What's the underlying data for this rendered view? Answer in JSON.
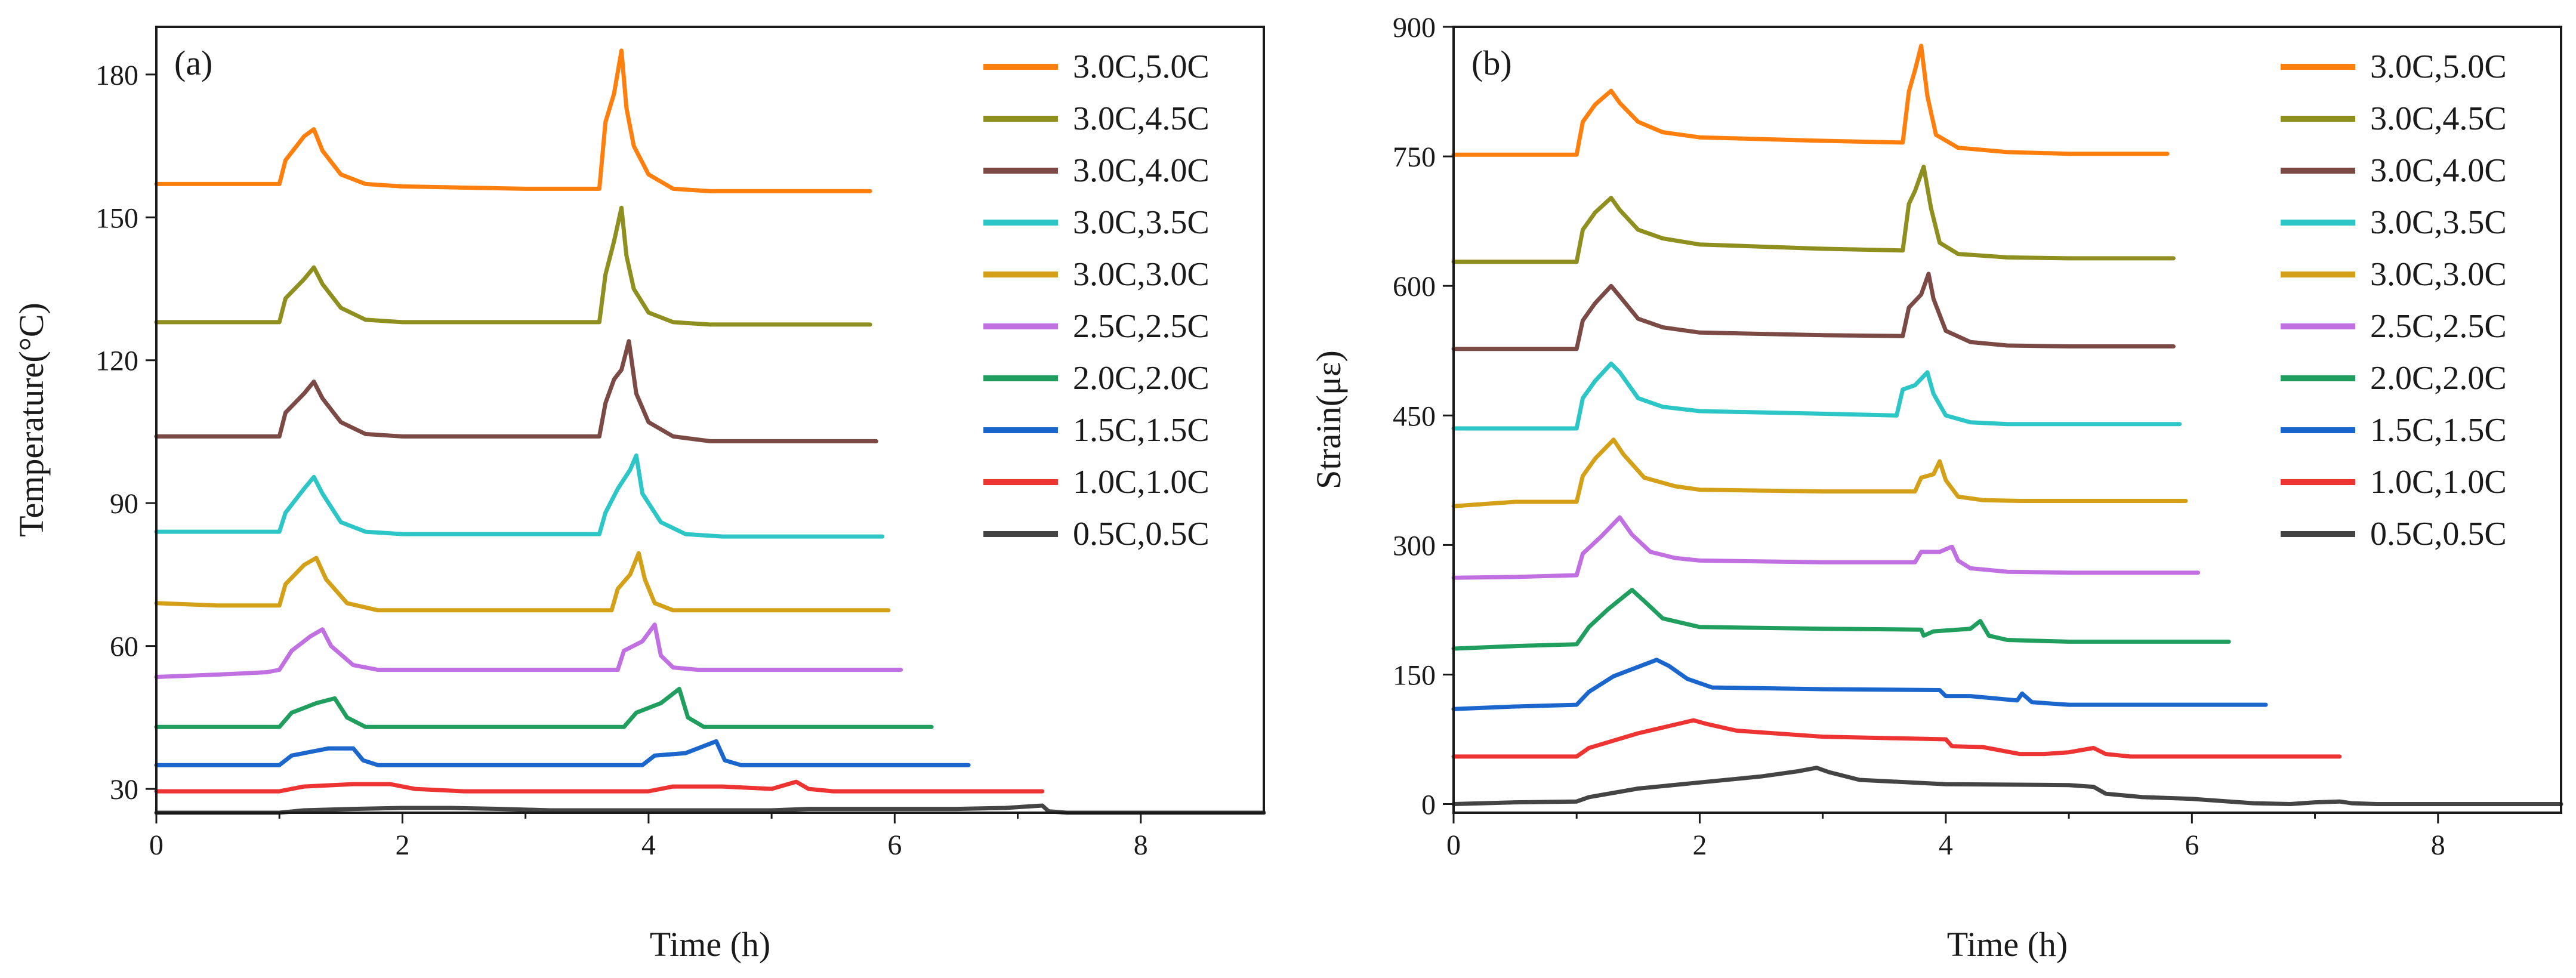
{
  "chart_data": [
    {
      "type": "line",
      "panel_label": "(a)",
      "title": "",
      "xlabel": "Time (h)",
      "ylabel": "Temperature(°C)",
      "xlim": [
        0,
        9
      ],
      "ylim": [
        25,
        190
      ],
      "xticks": [
        0,
        2,
        4,
        6,
        8
      ],
      "yticks": [
        30,
        60,
        90,
        120,
        150,
        180
      ],
      "legend_position": "top-right",
      "grid": false,
      "series": [
        {
          "name": "3.0C,5.0C",
          "color": "#ff7f0e",
          "x": [
            0,
            0.5,
            1.0,
            1.05,
            1.2,
            1.28,
            1.35,
            1.5,
            1.7,
            2.0,
            3.0,
            3.6,
            3.65,
            3.72,
            3.78,
            3.82,
            3.88,
            4.0,
            4.2,
            4.5,
            5.0,
            5.8
          ],
          "y": [
            157,
            157,
            157,
            162,
            167,
            168.5,
            164,
            159,
            157,
            156.5,
            156,
            156,
            170,
            176,
            185,
            173,
            165,
            159,
            156,
            155.5,
            155.5,
            155.5
          ]
        },
        {
          "name": "3.0C,4.5C",
          "color": "#8f8f1f",
          "x": [
            0,
            0.5,
            1.0,
            1.05,
            1.2,
            1.28,
            1.35,
            1.5,
            1.7,
            2.0,
            3.0,
            3.6,
            3.65,
            3.72,
            3.78,
            3.82,
            3.88,
            4.0,
            4.2,
            4.5,
            5.0,
            5.8
          ],
          "y": [
            128,
            128,
            128,
            133,
            137,
            139.5,
            136,
            131,
            128.5,
            128,
            128,
            128,
            138,
            145,
            152,
            142,
            135,
            130,
            128,
            127.5,
            127.5,
            127.5
          ]
        },
        {
          "name": "3.0C,4.0C",
          "color": "#7b4a45",
          "x": [
            0,
            0.5,
            1.0,
            1.05,
            1.2,
            1.28,
            1.35,
            1.5,
            1.7,
            2.0,
            3.0,
            3.6,
            3.65,
            3.72,
            3.78,
            3.84,
            3.9,
            4.0,
            4.2,
            4.5,
            5.0,
            5.85
          ],
          "y": [
            104,
            104,
            104,
            109,
            113,
            115.5,
            112,
            107,
            104.5,
            104,
            104,
            104,
            111,
            116,
            118,
            124,
            113,
            107,
            104,
            103,
            103,
            103
          ]
        },
        {
          "name": "3.0C,3.5C",
          "color": "#2cc6c6",
          "x": [
            0,
            0.5,
            1.0,
            1.05,
            1.2,
            1.28,
            1.35,
            1.5,
            1.7,
            2.0,
            3.0,
            3.6,
            3.65,
            3.75,
            3.85,
            3.9,
            3.95,
            4.1,
            4.3,
            4.6,
            5.0,
            5.9
          ],
          "y": [
            84,
            84,
            84,
            88,
            93,
            95.5,
            92,
            86,
            84,
            83.5,
            83.5,
            83.5,
            88,
            93,
            97,
            100,
            92,
            86,
            83.5,
            83,
            83,
            83
          ]
        },
        {
          "name": "3.0C,3.0C",
          "color": "#d4a017",
          "x": [
            0,
            0.5,
            1.0,
            1.05,
            1.2,
            1.3,
            1.38,
            1.55,
            1.8,
            2.0,
            3.0,
            3.7,
            3.75,
            3.85,
            3.92,
            3.97,
            4.05,
            4.2,
            4.5,
            5.0,
            5.95
          ],
          "y": [
            69,
            68.5,
            68.5,
            73,
            77,
            78.5,
            74,
            69,
            67.5,
            67.5,
            67.5,
            67.5,
            72,
            75,
            79.5,
            74,
            69,
            67.5,
            67.5,
            67.5,
            67.5
          ]
        },
        {
          "name": "2.5C,2.5C",
          "color": "#c070e0",
          "x": [
            0,
            0.5,
            0.9,
            1.0,
            1.1,
            1.25,
            1.35,
            1.42,
            1.6,
            1.8,
            2.0,
            3.0,
            3.75,
            3.8,
            3.95,
            4.05,
            4.1,
            4.2,
            4.4,
            5.0,
            6.05
          ],
          "y": [
            53.5,
            54,
            54.5,
            55,
            59,
            62,
            63.5,
            60,
            56,
            55,
            55,
            55,
            55,
            59,
            61,
            64.5,
            58,
            55.5,
            55,
            55,
            55
          ]
        },
        {
          "name": "2.0C,2.0C",
          "color": "#1f9e5e",
          "x": [
            0,
            0.5,
            1.0,
            1.1,
            1.3,
            1.45,
            1.55,
            1.7,
            2.0,
            3.0,
            3.8,
            3.9,
            4.1,
            4.25,
            4.32,
            4.45,
            4.6,
            5.0,
            6.3
          ],
          "y": [
            43,
            43,
            43,
            46,
            48,
            49,
            45,
            43,
            43,
            43,
            43,
            46,
            48,
            51,
            45,
            43,
            43,
            43,
            43
          ]
        },
        {
          "name": "1.5C,1.5C",
          "color": "#1a66cc",
          "x": [
            0,
            0.5,
            1.0,
            1.1,
            1.4,
            1.6,
            1.68,
            1.8,
            2.0,
            3.0,
            3.95,
            4.05,
            4.3,
            4.55,
            4.62,
            4.75,
            5.0,
            6.6
          ],
          "y": [
            35,
            35,
            35,
            37,
            38.5,
            38.5,
            36,
            35,
            35,
            35,
            35,
            37,
            37.5,
            40,
            36,
            35,
            35,
            35
          ]
        },
        {
          "name": "1.0C,1.0C",
          "color": "#ee3333",
          "x": [
            0,
            0.5,
            1.0,
            1.2,
            1.6,
            1.9,
            2.1,
            2.5,
            3.0,
            4.0,
            4.2,
            4.6,
            5.0,
            5.2,
            5.3,
            5.5,
            6.0,
            7.2
          ],
          "y": [
            29.5,
            29.5,
            29.5,
            30.5,
            31,
            31,
            30,
            29.5,
            29.5,
            29.5,
            30.5,
            30.5,
            30,
            31.5,
            30,
            29.5,
            29.5,
            29.5
          ]
        },
        {
          "name": "0.5C,0.5C",
          "color": "#444444",
          "x": [
            0,
            0.5,
            1.0,
            1.2,
            1.6,
            2.0,
            2.4,
            2.8,
            3.2,
            4.0,
            5.0,
            5.3,
            6.0,
            6.5,
            6.9,
            7.2,
            7.25,
            7.4,
            8.0,
            9.0
          ],
          "y": [
            25,
            25,
            25,
            25.5,
            25.8,
            26,
            26,
            25.8,
            25.5,
            25.5,
            25.5,
            25.8,
            25.8,
            25.8,
            26,
            26.5,
            25.3,
            25,
            25,
            25
          ]
        }
      ]
    },
    {
      "type": "line",
      "panel_label": "(b)",
      "title": "",
      "xlabel": "Time (h)",
      "ylabel": "Strain(με)",
      "xlim": [
        0,
        9
      ],
      "ylim": [
        -10,
        900
      ],
      "xticks": [
        0,
        2,
        4,
        6,
        8
      ],
      "yticks": [
        0,
        150,
        300,
        450,
        600,
        750,
        900
      ],
      "legend_position": "top-right",
      "grid": false,
      "series": [
        {
          "name": "3.0C,5.0C",
          "color": "#ff7f0e",
          "x": [
            0,
            0.5,
            1.0,
            1.05,
            1.15,
            1.28,
            1.35,
            1.5,
            1.7,
            2.0,
            3.0,
            3.65,
            3.7,
            3.75,
            3.8,
            3.85,
            3.92,
            4.1,
            4.5,
            5.0,
            5.8
          ],
          "y": [
            752,
            752,
            752,
            790,
            810,
            826,
            812,
            790,
            778,
            772,
            768,
            766,
            825,
            850,
            878,
            820,
            775,
            760,
            755,
            753,
            753
          ]
        },
        {
          "name": "3.0C,4.5C",
          "color": "#8f8f1f",
          "x": [
            0,
            0.5,
            1.0,
            1.05,
            1.15,
            1.28,
            1.35,
            1.5,
            1.7,
            2.0,
            3.0,
            3.65,
            3.7,
            3.75,
            3.82,
            3.88,
            3.95,
            4.1,
            4.5,
            5.0,
            5.85
          ],
          "y": [
            628,
            628,
            628,
            665,
            685,
            702,
            688,
            665,
            655,
            648,
            643,
            641,
            695,
            710,
            738,
            690,
            650,
            637,
            633,
            632,
            632
          ]
        },
        {
          "name": "3.0C,4.0C",
          "color": "#7b4a45",
          "x": [
            0,
            0.5,
            1.0,
            1.05,
            1.15,
            1.28,
            1.35,
            1.5,
            1.7,
            2.0,
            3.0,
            3.65,
            3.7,
            3.8,
            3.86,
            3.9,
            4.0,
            4.2,
            4.5,
            5.0,
            5.85
          ],
          "y": [
            527,
            527,
            527,
            560,
            580,
            600,
            588,
            562,
            552,
            546,
            543,
            542,
            575,
            590,
            614,
            585,
            548,
            535,
            531,
            530,
            530
          ]
        },
        {
          "name": "3.0C,3.5C",
          "color": "#2cc6c6",
          "x": [
            0,
            0.5,
            1.0,
            1.05,
            1.15,
            1.28,
            1.35,
            1.5,
            1.7,
            2.0,
            3.0,
            3.6,
            3.65,
            3.75,
            3.85,
            3.9,
            4.0,
            4.2,
            4.5,
            5.0,
            5.9
          ],
          "y": [
            435,
            435,
            435,
            470,
            490,
            510,
            500,
            470,
            460,
            455,
            452,
            450,
            480,
            485,
            500,
            475,
            450,
            442,
            440,
            440,
            440
          ]
        },
        {
          "name": "3.0C,3.0C",
          "color": "#d4a017",
          "x": [
            0,
            0.5,
            1.0,
            1.05,
            1.15,
            1.3,
            1.38,
            1.55,
            1.8,
            2.0,
            3.0,
            3.75,
            3.8,
            3.9,
            3.95,
            4.0,
            4.1,
            4.3,
            4.6,
            5.0,
            5.95
          ],
          "y": [
            345,
            350,
            350,
            380,
            400,
            422,
            405,
            378,
            368,
            364,
            362,
            362,
            378,
            382,
            397,
            375,
            356,
            352,
            351,
            351,
            351
          ]
        },
        {
          "name": "2.5C,2.5C",
          "color": "#c070e0",
          "x": [
            0,
            0.5,
            1.0,
            1.05,
            1.2,
            1.35,
            1.45,
            1.6,
            1.8,
            2.0,
            3.0,
            3.75,
            3.8,
            3.95,
            4.05,
            4.1,
            4.2,
            4.5,
            5.0,
            6.05
          ],
          "y": [
            262,
            263,
            265,
            290,
            310,
            332,
            312,
            292,
            285,
            282,
            280,
            280,
            292,
            292,
            298,
            282,
            273,
            269,
            268,
            268
          ]
        },
        {
          "name": "2.0C,2.0C",
          "color": "#1f9e5e",
          "x": [
            0,
            0.5,
            1.0,
            1.1,
            1.25,
            1.45,
            1.55,
            1.7,
            2.0,
            3.0,
            3.8,
            3.82,
            3.9,
            4.2,
            4.28,
            4.35,
            4.5,
            5.0,
            6.3
          ],
          "y": [
            180,
            183,
            185,
            205,
            225,
            248,
            235,
            215,
            205,
            203,
            202,
            195,
            200,
            203,
            212,
            195,
            190,
            188,
            188
          ]
        },
        {
          "name": "1.5C,1.5C",
          "color": "#1a66cc",
          "x": [
            0,
            0.5,
            1.0,
            1.1,
            1.3,
            1.65,
            1.75,
            1.9,
            2.1,
            3.0,
            3.95,
            4.0,
            4.2,
            4.58,
            4.62,
            4.7,
            5.0,
            6.6
          ],
          "y": [
            110,
            113,
            115,
            130,
            148,
            167,
            160,
            145,
            135,
            133,
            132,
            125,
            125,
            120,
            128,
            118,
            115,
            115
          ]
        },
        {
          "name": "1.0C,1.0C",
          "color": "#ee3333",
          "x": [
            0,
            0.5,
            1.0,
            1.1,
            1.5,
            1.95,
            2.05,
            2.3,
            3.0,
            4.0,
            4.05,
            4.3,
            4.6,
            4.8,
            5.0,
            5.2,
            5.3,
            5.5,
            6.0,
            7.2
          ],
          "y": [
            55,
            55,
            55,
            65,
            82,
            97,
            93,
            85,
            78,
            75,
            67,
            66,
            58,
            58,
            60,
            65,
            58,
            55,
            55,
            55
          ]
        },
        {
          "name": "0.5C,0.5C",
          "color": "#444444",
          "x": [
            0,
            0.5,
            1.0,
            1.1,
            1.5,
            2.0,
            2.5,
            2.8,
            2.95,
            3.05,
            3.3,
            4.0,
            5.0,
            5.2,
            5.3,
            5.6,
            6.0,
            6.5,
            6.8,
            7.0,
            7.2,
            7.3,
            7.5,
            8.0,
            9.0
          ],
          "y": [
            0,
            2,
            3,
            8,
            18,
            25,
            32,
            38,
            42,
            37,
            28,
            23,
            22,
            20,
            12,
            8,
            6,
            1,
            0,
            2,
            3,
            1,
            0,
            0,
            0
          ]
        }
      ]
    }
  ]
}
